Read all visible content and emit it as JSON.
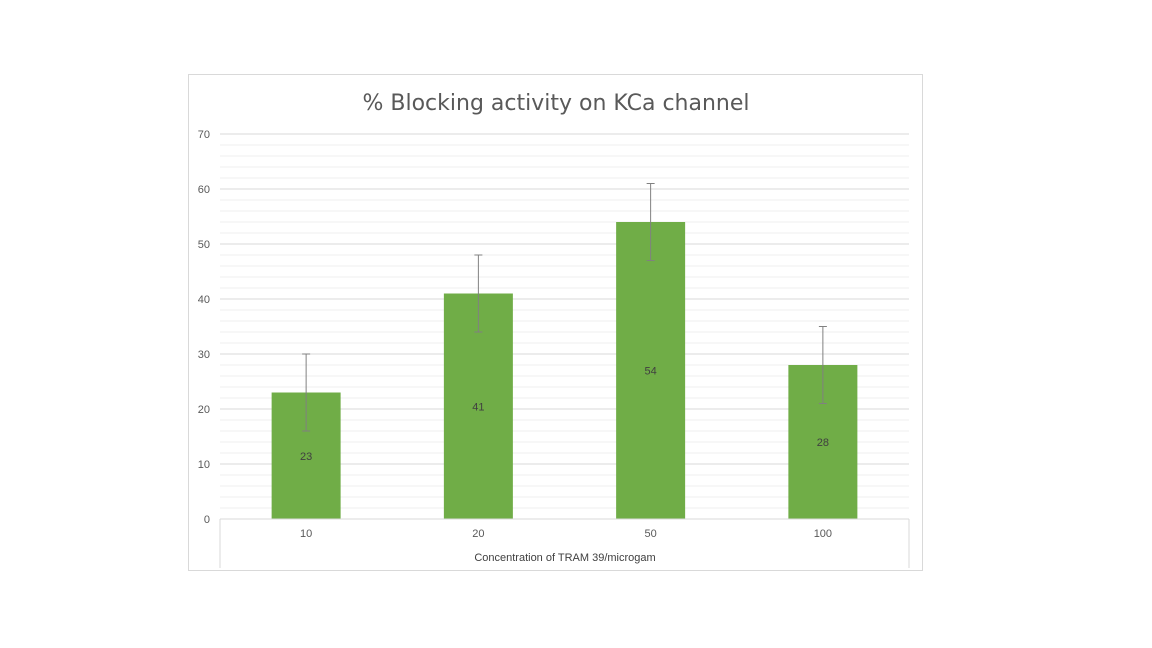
{
  "chart_data": {
    "type": "bar",
    "title": "% Blocking activity on KCa channel",
    "xlabel": "Concentration of TRAM 39/microgam",
    "ylabel": "",
    "categories": [
      "10",
      "20",
      "50",
      "100"
    ],
    "values": [
      23,
      41,
      54,
      28
    ],
    "error": [
      7,
      7,
      7,
      7
    ],
    "ylim": [
      0,
      70
    ],
    "yticks": [
      0,
      10,
      20,
      30,
      40,
      50,
      60,
      70
    ],
    "data_labels": [
      "23",
      "41",
      "54",
      "28"
    ],
    "bar_color": "#70ad47",
    "grid": true,
    "minor_grid": true,
    "legend": "none"
  }
}
